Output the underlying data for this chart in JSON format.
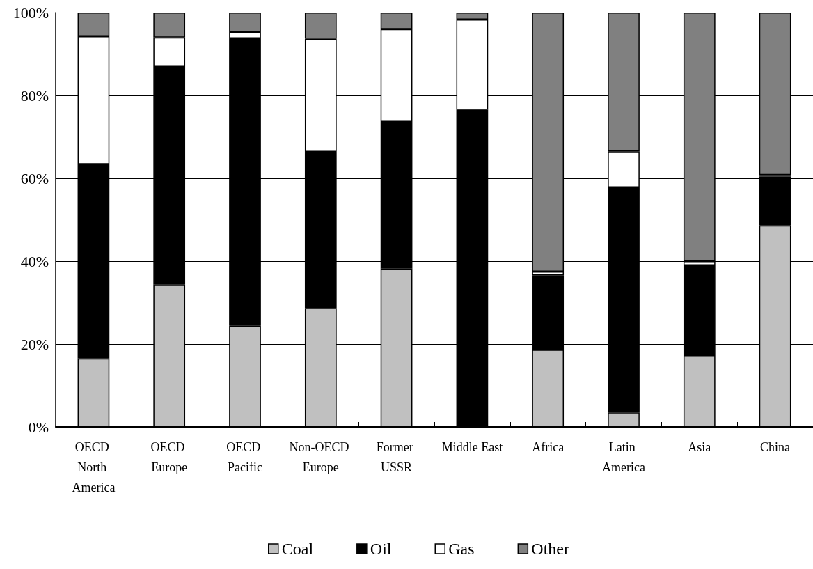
{
  "chart_data": {
    "type": "bar",
    "stacked": true,
    "categories": [
      "OECD North America",
      "OECD Europe",
      "OECD Pacific",
      "Non-OECD Europe",
      "Former USSR",
      "Middle East",
      "Africa",
      "Latin America",
      "Asia",
      "China"
    ],
    "series": [
      {
        "name": "Coal",
        "color": "#c0c0c0",
        "values": [
          16.5,
          34.4,
          24.4,
          28.7,
          38.2,
          0,
          18.6,
          3.5,
          17.3,
          48.6
        ]
      },
      {
        "name": "Oil",
        "color": "#000000",
        "values": [
          46.9,
          52.5,
          69.4,
          37.7,
          35.4,
          76.5,
          18.0,
          54.3,
          21.7,
          11.8
        ]
      },
      {
        "name": "Gas",
        "color": "#ffffff",
        "values": [
          30.9,
          7.1,
          1.5,
          27.3,
          22.4,
          21.8,
          0.9,
          8.7,
          1.0,
          0.4
        ]
      },
      {
        "name": "Other",
        "color": "#808080",
        "values": [
          5.7,
          6.0,
          4.7,
          6.3,
          4.0,
          1.7,
          62.5,
          33.5,
          60.0,
          39.2
        ]
      }
    ],
    "ylim": [
      0,
      100
    ],
    "yticks": [
      {
        "value": 0,
        "label": "0%"
      },
      {
        "value": 20,
        "label": "20%"
      },
      {
        "value": 40,
        "label": "40%"
      },
      {
        "value": 60,
        "label": "60%"
      },
      {
        "value": 80,
        "label": "80%"
      },
      {
        "value": 100,
        "label": "100%"
      }
    ],
    "grid": "y",
    "legend": "bottom"
  }
}
